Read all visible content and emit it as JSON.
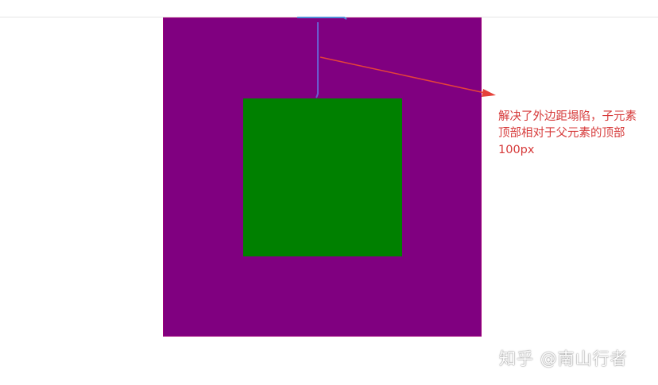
{
  "annotation": {
    "line1": "解决了外边距塌陷，子元素",
    "line2": "顶部相对于父元素的顶部",
    "line3": "100px"
  },
  "watermark": {
    "text": "知乎 @南山行者"
  },
  "colors": {
    "parent_box": "#800080",
    "child_box": "#008000",
    "annotation": "#d63a3a",
    "measure_line": "#6a5acd"
  }
}
